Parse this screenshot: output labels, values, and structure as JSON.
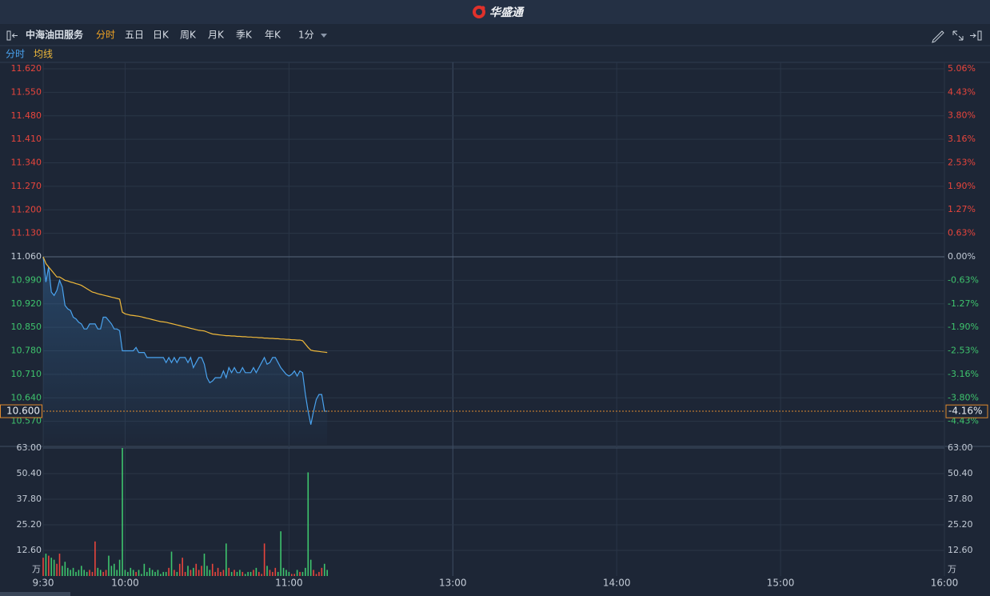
{
  "header": {
    "logo": "华盛通"
  },
  "toolbar": {
    "name": "中海油田服务",
    "tabs": [
      "分时",
      "五日",
      "日K",
      "周K",
      "月K",
      "季K",
      "年K",
      "1分"
    ]
  },
  "chart_data": [
    {
      "type": "line",
      "x": [
        0,
        1,
        2,
        3,
        4,
        5,
        6,
        7,
        8,
        9,
        10,
        11,
        12,
        13,
        14,
        15,
        16,
        17,
        18,
        19,
        20,
        21,
        22,
        23,
        24,
        25,
        26,
        27,
        28,
        29,
        30,
        31,
        32,
        33,
        34,
        35,
        36,
        37,
        38,
        39,
        40,
        41,
        42,
        43,
        44,
        45,
        46,
        47,
        48,
        49,
        50,
        51,
        52,
        53,
        54,
        55,
        56,
        57,
        58,
        59,
        60,
        61,
        62,
        63,
        64,
        65,
        66,
        67,
        68,
        69,
        70,
        71,
        72,
        73,
        74,
        75,
        76,
        77,
        78,
        79,
        80,
        81,
        82,
        83,
        84,
        85,
        86,
        87,
        88,
        89,
        90,
        91,
        92,
        93,
        94,
        95,
        96,
        97,
        98,
        99,
        100,
        101,
        102,
        103,
        104
      ],
      "xlim": [
        0,
        330
      ],
      "series": [
        {
          "name": "分时",
          "color": "#4aa3ef",
          "values": [
            11.06,
            10.985,
            11.03,
            10.955,
            10.945,
            10.96,
            10.99,
            10.97,
            10.915,
            10.905,
            10.9,
            10.88,
            10.875,
            10.865,
            10.86,
            10.845,
            10.845,
            10.86,
            10.86,
            10.86,
            10.845,
            10.845,
            10.88,
            10.88,
            10.87,
            10.86,
            10.845,
            10.845,
            10.84,
            10.78,
            10.78,
            10.78,
            10.78,
            10.78,
            10.79,
            10.775,
            10.775,
            10.775,
            10.76,
            10.76,
            10.76,
            10.76,
            10.76,
            10.76,
            10.76,
            10.745,
            10.76,
            10.745,
            10.76,
            10.745,
            10.76,
            10.76,
            10.76,
            10.745,
            10.76,
            10.73,
            10.745,
            10.76,
            10.76,
            10.74,
            10.7,
            10.685,
            10.69,
            10.7,
            10.7,
            10.7,
            10.72,
            10.7,
            10.73,
            10.715,
            10.73,
            10.715,
            10.715,
            10.73,
            10.715,
            10.715,
            10.715,
            10.73,
            10.715,
            10.73,
            10.745,
            10.76,
            10.74,
            10.745,
            10.76,
            10.76,
            10.745,
            10.73,
            10.72,
            10.71,
            10.705,
            10.71,
            10.72,
            10.705,
            10.72,
            10.715,
            10.65,
            10.6,
            10.56,
            10.6,
            10.635,
            10.65,
            10.65,
            10.6,
            10.6
          ]
        },
        {
          "name": "均线",
          "color": "#f0b93a",
          "values": [
            11.06,
            11.04,
            11.03,
            11.02,
            11.01,
            11.0,
            11.0,
            10.995,
            10.99,
            10.988,
            10.985,
            10.983,
            10.98,
            10.978,
            10.975,
            10.97,
            10.965,
            10.96,
            10.955,
            10.953,
            10.95,
            10.948,
            10.946,
            10.944,
            10.942,
            10.94,
            10.938,
            10.936,
            10.934,
            10.895,
            10.89,
            10.888,
            10.886,
            10.885,
            10.884,
            10.883,
            10.881,
            10.879,
            10.877,
            10.875,
            10.873,
            10.871,
            10.869,
            10.867,
            10.866,
            10.865,
            10.863,
            10.861,
            10.859,
            10.857,
            10.855,
            10.853,
            10.851,
            10.849,
            10.847,
            10.845,
            10.843,
            10.841,
            10.84,
            10.839,
            10.836,
            10.833,
            10.83,
            10.829,
            10.828,
            10.827,
            10.826,
            10.825,
            10.825,
            10.824,
            10.824,
            10.823,
            10.823,
            10.822,
            10.822,
            10.821,
            10.821,
            10.82,
            10.82,
            10.819,
            10.819,
            10.818,
            10.818,
            10.817,
            10.817,
            10.816,
            10.816,
            10.815,
            10.815,
            10.814,
            10.814,
            10.813,
            10.813,
            10.812,
            10.812,
            10.81,
            10.8,
            10.79,
            10.782,
            10.78,
            10.779,
            10.778,
            10.777,
            10.776,
            10.775
          ]
        }
      ],
      "ylim": [
        10.5,
        11.62
      ],
      "yticks": [
        {
          "value": 11.62,
          "label": "11.620"
        },
        {
          "value": 11.55,
          "label": "11.550"
        },
        {
          "value": 11.48,
          "label": "11.480"
        },
        {
          "value": 11.41,
          "label": "11.410"
        },
        {
          "value": 11.34,
          "label": "11.340"
        },
        {
          "value": 11.27,
          "label": "11.270"
        },
        {
          "value": 11.2,
          "label": "11.200"
        },
        {
          "value": 11.13,
          "label": "11.130"
        },
        {
          "value": 11.06,
          "label": "11.060"
        },
        {
          "value": 10.99,
          "label": "10.990"
        },
        {
          "value": 10.92,
          "label": "10.920"
        },
        {
          "value": 10.85,
          "label": "10.850"
        },
        {
          "value": 10.78,
          "label": "10.780"
        },
        {
          "value": 10.71,
          "label": "10.710"
        },
        {
          "value": 10.64,
          "label": "10.640"
        },
        {
          "value": 10.57,
          "label": "10.570"
        }
      ],
      "y2lim": [
        -5.06,
        5.06
      ],
      "y2ticks": [
        {
          "value": 5.06,
          "label": "5.06%"
        },
        {
          "value": 4.43,
          "label": "4.43%"
        },
        {
          "value": 3.8,
          "label": "3.80%"
        },
        {
          "value": 3.16,
          "label": "3.16%"
        },
        {
          "value": 2.53,
          "label": "2.53%"
        },
        {
          "value": 1.9,
          "label": "1.90%"
        },
        {
          "value": 1.27,
          "label": "1.27%"
        },
        {
          "value": 0.63,
          "label": "0.63%"
        },
        {
          "value": 0,
          "label": "0.00%"
        },
        {
          "value": -0.63,
          "label": "-0.63%"
        },
        {
          "value": -1.27,
          "label": "-1.27%"
        },
        {
          "value": -1.9,
          "label": "-1.90%"
        },
        {
          "value": -2.53,
          "label": "-2.53%"
        },
        {
          "value": -3.16,
          "label": "-3.16%"
        },
        {
          "value": -3.8,
          "label": "-3.80%"
        },
        {
          "value": -4.43,
          "label": "-4.43%"
        }
      ],
      "last_price": {
        "value": 10.6,
        "label": "10.600"
      },
      "last_change": {
        "value": -4.16,
        "label": "-4.16%"
      },
      "grid": true
    },
    {
      "type": "bar",
      "unit": "万",
      "up_color": "#e8453c",
      "down_color": "#3ec46d",
      "values": [
        9,
        11,
        10,
        9,
        8,
        6,
        11,
        5,
        7,
        4,
        3,
        4,
        2,
        3,
        5,
        3,
        2,
        3,
        2,
        17,
        4,
        3,
        2,
        3,
        10,
        5,
        6,
        3,
        8,
        63,
        3,
        2,
        4,
        3,
        2,
        3,
        1,
        6,
        2,
        4,
        3,
        2,
        3,
        1,
        2,
        2,
        4,
        12,
        3,
        2,
        6,
        9,
        2,
        5,
        3,
        4,
        6,
        3,
        5,
        11,
        5,
        3,
        6,
        2,
        4,
        2,
        3,
        16,
        4,
        2,
        3,
        2,
        3,
        2,
        1,
        2,
        2,
        3,
        4,
        2,
        1,
        16,
        5,
        3,
        2,
        4,
        2,
        22,
        4,
        3,
        2,
        1,
        1,
        3,
        2,
        2,
        4,
        51,
        8,
        3,
        1,
        2,
        4,
        6,
        3
      ],
      "xlim": [
        0,
        330
      ],
      "xticks": [
        {
          "value": 0,
          "label": "9:30"
        },
        {
          "value": 30,
          "label": "10:00"
        },
        {
          "value": 90,
          "label": "11:00"
        },
        {
          "value": 150,
          "label": "13:00"
        },
        {
          "value": 210,
          "label": "14:00"
        },
        {
          "value": 270,
          "label": "15:00"
        },
        {
          "value": 330,
          "label": "16:00"
        }
      ],
      "ylim": [
        0,
        63
      ],
      "yticks": [
        {
          "value": 63,
          "label": "63.00"
        },
        {
          "value": 50.4,
          "label": "50.40"
        },
        {
          "value": 37.8,
          "label": "37.80"
        },
        {
          "value": 25.2,
          "label": "25.20"
        },
        {
          "value": 12.6,
          "label": "12.60"
        }
      ],
      "grid": true
    }
  ]
}
